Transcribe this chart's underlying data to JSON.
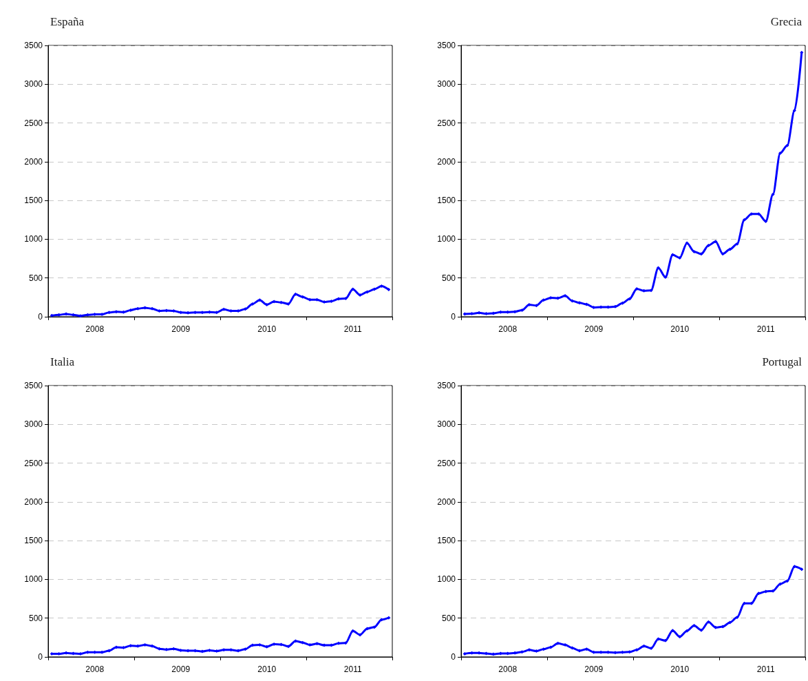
{
  "chart_data": [
    {
      "type": "line",
      "title": "España",
      "categories": [
        null,
        null,
        null,
        null,
        null,
        null,
        "2008",
        null,
        null,
        null,
        null,
        null,
        null,
        null,
        null,
        null,
        null,
        null,
        "2009",
        null,
        null,
        null,
        null,
        null,
        null,
        null,
        null,
        null,
        null,
        null,
        "2010",
        null,
        null,
        null,
        null,
        null,
        null,
        null,
        null,
        null,
        null,
        null,
        "2011",
        null,
        null,
        null,
        null,
        null
      ],
      "values": [
        15,
        25,
        35,
        25,
        10,
        25,
        30,
        30,
        55,
        65,
        60,
        85,
        105,
        115,
        105,
        75,
        80,
        75,
        55,
        50,
        55,
        55,
        60,
        55,
        95,
        75,
        75,
        100,
        165,
        215,
        155,
        195,
        185,
        165,
        290,
        255,
        220,
        220,
        190,
        200,
        230,
        235,
        355,
        280,
        320,
        355,
        395,
        350
      ],
      "color": "#0000ff",
      "ylim": [
        0,
        3500
      ],
      "yticks": [
        0,
        500,
        1000,
        1500,
        2000,
        2500,
        3000,
        3500
      ],
      "grid": "y",
      "marker": "diamond",
      "line_style": "solid"
    },
    {
      "type": "line",
      "title": "Grecia",
      "categories": [
        null,
        null,
        null,
        null,
        null,
        null,
        "2008",
        null,
        null,
        null,
        null,
        null,
        null,
        null,
        null,
        null,
        null,
        null,
        "2009",
        null,
        null,
        null,
        null,
        null,
        null,
        null,
        null,
        null,
        null,
        null,
        "2010",
        null,
        null,
        null,
        null,
        null,
        null,
        null,
        null,
        null,
        null,
        null,
        "2011",
        null,
        null,
        null,
        null,
        null
      ],
      "values": [
        35,
        40,
        50,
        40,
        45,
        60,
        60,
        65,
        85,
        155,
        145,
        215,
        245,
        240,
        270,
        205,
        180,
        160,
        120,
        125,
        125,
        130,
        175,
        230,
        360,
        335,
        340,
        630,
        510,
        800,
        760,
        950,
        840,
        810,
        920,
        970,
        810,
        870,
        940,
        1250,
        1325,
        1325,
        1230,
        1580,
        2110,
        2210,
        2660,
        3410
      ],
      "color": "#0000ff",
      "ylim": [
        0,
        3500
      ],
      "yticks": [
        0,
        500,
        1000,
        1500,
        2000,
        2500,
        3000,
        3500
      ],
      "grid": "y",
      "marker": "diamond",
      "line_style": "solid"
    },
    {
      "type": "line",
      "title": "Italia",
      "categories": [
        null,
        null,
        null,
        null,
        null,
        null,
        "2008",
        null,
        null,
        null,
        null,
        null,
        null,
        null,
        null,
        null,
        null,
        null,
        "2009",
        null,
        null,
        null,
        null,
        null,
        null,
        null,
        null,
        null,
        null,
        null,
        "2010",
        null,
        null,
        null,
        null,
        null,
        null,
        null,
        null,
        null,
        null,
        null,
        "2011",
        null,
        null,
        null,
        null,
        null
      ],
      "values": [
        40,
        40,
        50,
        45,
        40,
        60,
        60,
        60,
        80,
        125,
        120,
        145,
        140,
        155,
        140,
        105,
        95,
        105,
        85,
        80,
        80,
        70,
        85,
        75,
        90,
        90,
        80,
        100,
        150,
        155,
        130,
        165,
        160,
        135,
        205,
        185,
        155,
        170,
        150,
        150,
        175,
        180,
        335,
        285,
        365,
        385,
        480,
        505
      ],
      "color": "#0000ff",
      "ylim": [
        0,
        3500
      ],
      "yticks": [
        0,
        500,
        1000,
        1500,
        2000,
        2500,
        3000,
        3500
      ],
      "grid": "y",
      "marker": "diamond",
      "line_style": "solid"
    },
    {
      "type": "line",
      "title": "Portugal",
      "categories": [
        null,
        null,
        null,
        null,
        null,
        null,
        "2008",
        null,
        null,
        null,
        null,
        null,
        null,
        null,
        null,
        null,
        null,
        null,
        "2009",
        null,
        null,
        null,
        null,
        null,
        null,
        null,
        null,
        null,
        null,
        null,
        "2010",
        null,
        null,
        null,
        null,
        null,
        null,
        null,
        null,
        null,
        null,
        null,
        "2011",
        null,
        null,
        null,
        null,
        null
      ],
      "values": [
        40,
        50,
        50,
        45,
        35,
        45,
        45,
        50,
        65,
        90,
        75,
        100,
        125,
        175,
        155,
        115,
        80,
        100,
        60,
        60,
        60,
        55,
        60,
        65,
        90,
        140,
        110,
        230,
        210,
        340,
        260,
        335,
        405,
        345,
        450,
        380,
        390,
        445,
        510,
        690,
        690,
        820,
        845,
        850,
        940,
        980,
        1165,
        1130
      ],
      "color": "#0000ff",
      "ylim": [
        0,
        3500
      ],
      "yticks": [
        0,
        500,
        1000,
        1500,
        2000,
        2500,
        3000,
        3500
      ],
      "grid": "y",
      "marker": "diamond",
      "line_style": "solid"
    }
  ]
}
